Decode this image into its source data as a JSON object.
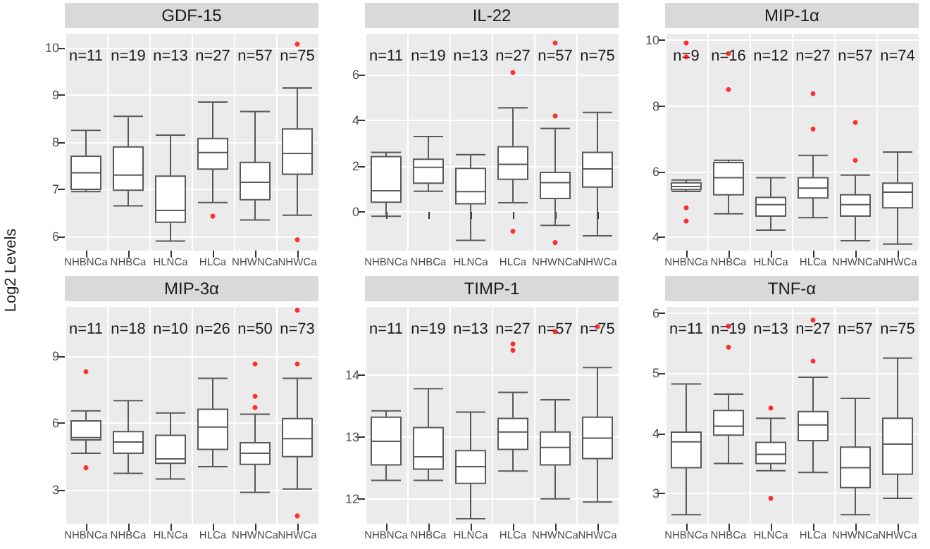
{
  "chart_data": [
    {
      "type": "box",
      "title": "GDF-15",
      "ylabel": "Log2 Levels",
      "categories": [
        "NHBNCa",
        "NHBCa",
        "HLNCa",
        "HLCa",
        "NHWNCa",
        "NHWCa"
      ],
      "ylim": [
        5.7,
        10.3
      ],
      "yticks": [
        6,
        7,
        8,
        9,
        10
      ],
      "grid": true,
      "boxes": [
        {
          "low": 6.95,
          "q1": 7.0,
          "median": 7.35,
          "q3": 7.7,
          "high": 8.25
        },
        {
          "low": 6.65,
          "q1": 6.98,
          "median": 7.3,
          "q3": 7.9,
          "high": 8.55
        },
        {
          "low": 5.9,
          "q1": 6.3,
          "median": 6.55,
          "q3": 7.28,
          "high": 8.15
        },
        {
          "low": 6.72,
          "q1": 7.43,
          "median": 7.78,
          "q3": 8.08,
          "high": 8.85,
          "outliers": [
            6.43
          ]
        },
        {
          "low": 6.35,
          "q1": 6.78,
          "median": 7.15,
          "q3": 7.57,
          "high": 8.65
        },
        {
          "low": 6.45,
          "q1": 7.32,
          "median": 7.76,
          "q3": 8.28,
          "high": 9.15,
          "outliers": [
            10.08,
            5.93
          ]
        }
      ],
      "annotations": [
        "n=11",
        "n=19",
        "n=13",
        "n=27",
        "n=57",
        "n=75"
      ]
    },
    {
      "type": "box",
      "title": "IL-22",
      "categories": [
        "NHBNCa",
        "NHBCa",
        "HLNCa",
        "HLCa",
        "NHWNCa",
        "NHWCa"
      ],
      "ylim": [
        -1.7,
        7.8
      ],
      "yticks": [
        0,
        2,
        4,
        6
      ],
      "grid": true,
      "boxes": [
        {
          "low": -0.2,
          "q1": 0.42,
          "median": 0.92,
          "q3": 2.42,
          "high": 2.6
        },
        {
          "low": 0.9,
          "q1": 1.25,
          "median": 1.95,
          "q3": 2.3,
          "high": 3.3
        },
        {
          "low": -1.25,
          "q1": 0.35,
          "median": 0.88,
          "q3": 1.9,
          "high": 2.5
        },
        {
          "low": 0.4,
          "q1": 1.42,
          "median": 2.08,
          "q3": 2.85,
          "high": 4.55,
          "outliers": [
            6.1,
            -0.85
          ]
        },
        {
          "low": -0.6,
          "q1": 0.58,
          "median": 1.28,
          "q3": 1.72,
          "high": 3.65,
          "outliers": [
            4.2,
            7.4,
            -1.35
          ]
        },
        {
          "low": -1.05,
          "q1": 1.08,
          "median": 1.88,
          "q3": 2.6,
          "high": 4.35
        }
      ],
      "annotations": [
        "n=11",
        "n=19",
        "n=13",
        "n=27",
        "n=57",
        "n=75"
      ]
    },
    {
      "type": "box",
      "title": "MIP-1α",
      "categories": [
        "NHBNCa",
        "NHBCa",
        "HLNCa",
        "HLCa",
        "NHWNCa",
        "NHWCa"
      ],
      "ylim": [
        3.6,
        10.2
      ],
      "yticks": [
        4,
        6,
        8,
        10
      ],
      "grid": true,
      "boxes": [
        {
          "low": 5.4,
          "q1": 5.46,
          "median": 5.55,
          "q3": 5.66,
          "high": 5.75,
          "outliers": [
            9.92,
            9.5,
            4.9,
            4.5
          ]
        },
        {
          "low": 4.72,
          "q1": 5.3,
          "median": 5.82,
          "q3": 6.28,
          "high": 6.35,
          "outliers": [
            8.5,
            9.6
          ]
        },
        {
          "low": 4.22,
          "q1": 4.65,
          "median": 5.0,
          "q3": 5.22,
          "high": 5.82
        },
        {
          "low": 4.6,
          "q1": 5.2,
          "median": 5.5,
          "q3": 5.82,
          "high": 6.5,
          "outliers": [
            8.38,
            7.3
          ]
        },
        {
          "low": 3.9,
          "q1": 4.65,
          "median": 5.0,
          "q3": 5.3,
          "high": 5.9,
          "outliers": [
            6.35,
            7.5
          ]
        },
        {
          "low": 3.8,
          "q1": 4.9,
          "median": 5.38,
          "q3": 5.65,
          "high": 6.6
        }
      ],
      "annotations": [
        "n=9",
        "n=16",
        "n=12",
        "n=27",
        "n=57",
        "n=74"
      ]
    },
    {
      "type": "box",
      "title": "MIP-3α",
      "categories": [
        "NHBNCa",
        "NHBCa",
        "HLNCa",
        "HLCa",
        "NHWNCa",
        "NHWCa"
      ],
      "ylim": [
        1.5,
        11.2
      ],
      "yticks": [
        3,
        6,
        9
      ],
      "grid": true,
      "boxes": [
        {
          "low": 4.65,
          "q1": 5.25,
          "median": 5.35,
          "q3": 6.1,
          "high": 6.55,
          "outliers": [
            8.3,
            4.0
          ]
        },
        {
          "low": 3.75,
          "q1": 4.65,
          "median": 5.15,
          "q3": 5.62,
          "high": 7.0
        },
        {
          "low": 3.5,
          "q1": 4.2,
          "median": 4.4,
          "q3": 5.45,
          "high": 6.45
        },
        {
          "low": 4.05,
          "q1": 4.82,
          "median": 5.82,
          "q3": 6.62,
          "high": 8.0
        },
        {
          "low": 2.9,
          "q1": 4.15,
          "median": 4.65,
          "q3": 5.12,
          "high": 6.4,
          "outliers": [
            8.65,
            7.2,
            6.7
          ]
        },
        {
          "low": 3.05,
          "q1": 4.5,
          "median": 5.3,
          "q3": 6.2,
          "high": 8.0,
          "outliers": [
            11.05,
            8.65,
            1.85
          ]
        }
      ],
      "annotations": [
        "n=11",
        "n=18",
        "n=10",
        "n=26",
        "n=50",
        "n=73"
      ]
    },
    {
      "type": "box",
      "title": "TIMP-1",
      "categories": [
        "NHBNCa",
        "NHBCa",
        "HLNCa",
        "HLCa",
        "NHWNCa",
        "NHWCa"
      ],
      "ylim": [
        11.6,
        15.1
      ],
      "yticks": [
        12,
        13,
        14
      ],
      "grid": true,
      "boxes": [
        {
          "low": 12.3,
          "q1": 12.55,
          "median": 12.93,
          "q3": 13.32,
          "high": 13.42
        },
        {
          "low": 12.3,
          "q1": 12.48,
          "median": 12.68,
          "q3": 13.15,
          "high": 13.78
        },
        {
          "low": 11.68,
          "q1": 12.25,
          "median": 12.52,
          "q3": 12.78,
          "high": 13.4
        },
        {
          "low": 12.45,
          "q1": 12.8,
          "median": 13.08,
          "q3": 13.3,
          "high": 13.72,
          "outliers": [
            14.5,
            14.4
          ]
        },
        {
          "low": 12.0,
          "q1": 12.55,
          "median": 12.83,
          "q3": 13.08,
          "high": 13.6,
          "outliers": [
            14.7
          ]
        },
        {
          "low": 11.95,
          "q1": 12.65,
          "median": 12.98,
          "q3": 13.32,
          "high": 14.12,
          "outliers": [
            14.78
          ]
        }
      ],
      "annotations": [
        "n=11",
        "n=19",
        "n=13",
        "n=27",
        "n=57",
        "n=75"
      ]
    },
    {
      "type": "box",
      "title": "TNF-α",
      "categories": [
        "NHBNCa",
        "NHBCa",
        "HLNCa",
        "HLCa",
        "NHWNCa",
        "NHWCa"
      ],
      "ylim": [
        2.5,
        6.1
      ],
      "yticks": [
        3,
        4,
        5,
        6
      ],
      "grid": true,
      "boxes": [
        {
          "low": 2.65,
          "q1": 3.43,
          "median": 3.86,
          "q3": 4.02,
          "high": 4.82
        },
        {
          "low": 3.5,
          "q1": 3.97,
          "median": 4.12,
          "q3": 4.38,
          "high": 4.65,
          "outliers": [
            5.43,
            5.78
          ]
        },
        {
          "low": 3.38,
          "q1": 3.5,
          "median": 3.65,
          "q3": 3.85,
          "high": 4.25,
          "outliers": [
            4.42,
            2.92
          ]
        },
        {
          "low": 3.35,
          "q1": 3.88,
          "median": 4.14,
          "q3": 4.36,
          "high": 4.93,
          "outliers": [
            5.2,
            5.88
          ]
        },
        {
          "low": 2.65,
          "q1": 3.1,
          "median": 3.43,
          "q3": 3.77,
          "high": 4.58
        },
        {
          "low": 2.92,
          "q1": 3.32,
          "median": 3.82,
          "q3": 4.25,
          "high": 5.25
        }
      ],
      "annotations": [
        "n=11",
        "n=19",
        "n=13",
        "n=27",
        "n=57",
        "n=75"
      ]
    }
  ]
}
